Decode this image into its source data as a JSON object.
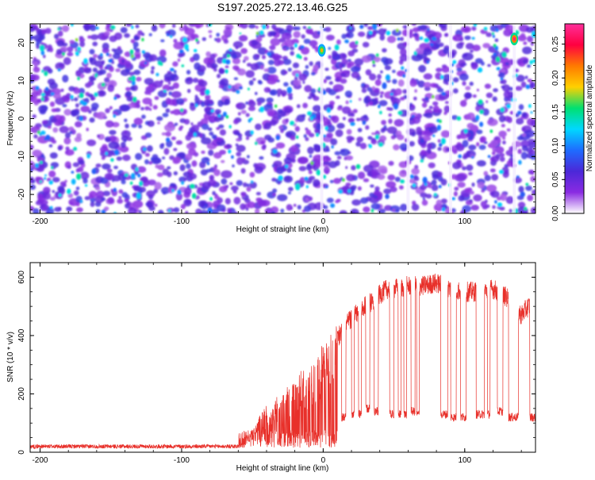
{
  "title": "S197.2025.272.13.46.G25",
  "colors": {
    "snr_line": "#e8302a",
    "axis": "#000000",
    "spectrogram_bg": "#7a2ad6"
  },
  "chart_data": [
    {
      "type": "heatmap",
      "name": "spectrogram",
      "xlabel": "Height of straight line (km)",
      "ylabel": "Frequency (Hz)",
      "xlim": [
        -207,
        150
      ],
      "ylim": [
        -25,
        25
      ],
      "x_ticks": [
        -200,
        -100,
        0,
        100
      ],
      "x_tick_labels": [
        "-200",
        "-100",
        "0",
        "100"
      ],
      "y_ticks": [
        -20,
        -10,
        0,
        10,
        20
      ],
      "y_tick_labels": [
        "-20",
        "-10",
        "0",
        "10",
        "20"
      ],
      "colorbar": {
        "label": "Normalized spectral amplitude",
        "range": [
          0,
          0.28
        ],
        "ticks": [
          0,
          0.05,
          0.1,
          0.15,
          0.2,
          0.25
        ],
        "tick_labels": [
          "0.00",
          "0.05",
          "0.10",
          "0.15",
          "0.20",
          "0.25"
        ],
        "colormap": [
          "#ffffff",
          "#8a2be2",
          "#4b28d8",
          "#1e6cff",
          "#00d8ff",
          "#00e070",
          "#ffd000",
          "#ff7a00",
          "#ff0040",
          "#ff2f9a"
        ]
      },
      "bright_spots": [
        {
          "x": -1,
          "y": 18,
          "value": 0.2
        },
        {
          "x": 135,
          "y": 21,
          "value": 0.27
        }
      ],
      "vertical_stripes_x": [
        -1,
        60,
        90,
        135
      ]
    },
    {
      "type": "line",
      "name": "snr",
      "xlabel": "Height of straight line (km)",
      "ylabel": "SNR (10 * v/v)",
      "xlim": [
        -207,
        150
      ],
      "ylim": [
        0,
        650
      ],
      "x_ticks": [
        -200,
        -100,
        0,
        100
      ],
      "x_tick_labels": [
        "-200",
        "-100",
        "0",
        "100"
      ],
      "y_ticks": [
        0,
        200,
        400,
        600
      ],
      "y_tick_labels": [
        "0",
        "200",
        "400",
        "600"
      ],
      "envelope": {
        "x": [
          -207,
          -60,
          -52,
          -45,
          -40,
          -30,
          -20,
          -15,
          -10,
          -5,
          0,
          5,
          10,
          15,
          20,
          30,
          40,
          45,
          50,
          60,
          70,
          80,
          90,
          100,
          110,
          120,
          130,
          140,
          145,
          150
        ],
        "y": [
          20,
          20,
          60,
          110,
          140,
          180,
          210,
          250,
          270,
          300,
          330,
          360,
          390,
          430,
          460,
          500,
          540,
          560,
          560,
          570,
          570,
          580,
          560,
          550,
          550,
          560,
          530,
          470,
          500,
          520
        ]
      },
      "dropouts": [
        {
          "x0": 13,
          "x1": 16,
          "level": 120
        },
        {
          "x0": 20,
          "x1": 22,
          "level": 130
        },
        {
          "x0": 25,
          "x1": 27,
          "level": 130
        },
        {
          "x0": 30,
          "x1": 33,
          "level": 150
        },
        {
          "x0": 36,
          "x1": 39,
          "level": 140
        },
        {
          "x0": 47,
          "x1": 50,
          "level": 130
        },
        {
          "x0": 53,
          "x1": 55,
          "level": 130
        },
        {
          "x0": 57,
          "x1": 59,
          "level": 130
        },
        {
          "x0": 62,
          "x1": 65,
          "level": 140
        },
        {
          "x0": 66,
          "x1": 68,
          "level": 130
        },
        {
          "x0": 83,
          "x1": 88,
          "level": 130
        },
        {
          "x0": 90,
          "x1": 94,
          "level": 120
        },
        {
          "x0": 97,
          "x1": 101,
          "level": 120
        },
        {
          "x0": 108,
          "x1": 114,
          "level": 130
        },
        {
          "x0": 116,
          "x1": 118,
          "level": 130
        },
        {
          "x0": 123,
          "x1": 127,
          "level": 140
        },
        {
          "x0": 131,
          "x1": 138,
          "level": 120
        },
        {
          "x0": 146,
          "x1": 150,
          "level": 120
        }
      ]
    }
  ]
}
